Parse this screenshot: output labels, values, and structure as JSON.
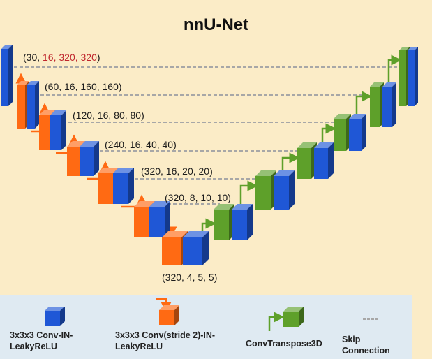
{
  "title": "nnU-Net",
  "encoder_shapes": [
    {
      "prefix": "(30, ",
      "highlight": "16, 320, 320",
      "suffix": ")"
    },
    {
      "text": "(60, 16, 160, 160)"
    },
    {
      "text": "(120, 16, 80, 80)"
    },
    {
      "text": "(240, 16, 40, 40)"
    },
    {
      "text": "(320, 16, 20, 20)"
    },
    {
      "text": "(320, 8, 10, 10)"
    }
  ],
  "bottleneck_shape": "(320, 4, 5, 5)",
  "legend": {
    "conv": "3x3x3 Conv-IN-\nLeakyReLU",
    "conv_stride": "3x3x3 Conv(stride 2)-IN-\nLeakyReLU",
    "transpose": "ConvTranspose3D",
    "skip": "Skip\nConnection"
  },
  "colors": {
    "background": "#fbecc7",
    "conv_blue": "#1f57d6",
    "stride_orange": "#ff6a13",
    "transpose_green": "#5ea02a",
    "skip_gray": "#a7a7a7",
    "highlight_red": "#c0272d",
    "legend_bg": "#dfeaf2"
  }
}
